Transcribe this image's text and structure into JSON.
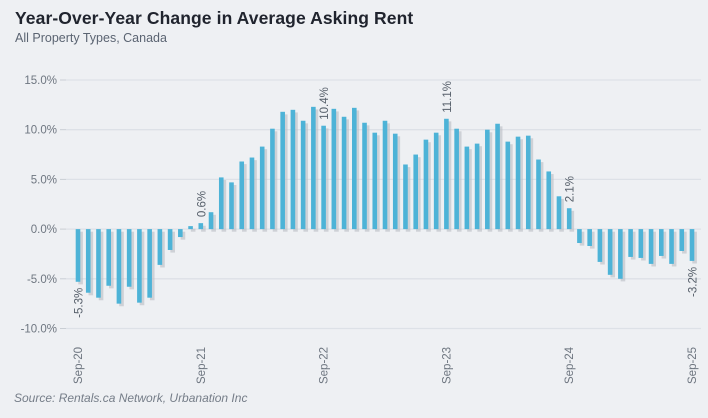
{
  "header": {
    "title": "Year-Over-Year Change in Average Asking Rent",
    "subtitle": "All Property Types, Canada"
  },
  "source": "Source: Rentals.ca Network, Urbanation Inc",
  "colors": {
    "background": "#eef0f3",
    "bar": "#4db3d7",
    "bar_shadow": "#b9bdc3",
    "gridline": "#dde1e7",
    "axis_tick": "#c9ced4",
    "axis_text": "#6e7680",
    "annotation_text": "#565f6a"
  },
  "chart_data": {
    "type": "bar",
    "title": "Year-Over-Year Change in Average Asking Rent",
    "subtitle": "All Property Types, Canada",
    "xlabel": "",
    "ylabel": "",
    "ylim": [
      -10,
      15
    ],
    "grid": true,
    "legend": "none",
    "y_ticks": [
      {
        "label": "15.0%",
        "value": 15
      },
      {
        "label": "10.0%",
        "value": 10
      },
      {
        "label": "5.0%",
        "value": 5
      },
      {
        "label": "0.0%",
        "value": 0
      },
      {
        "label": "-5.0%",
        "value": -5
      },
      {
        "label": "-10.0%",
        "value": -10
      }
    ],
    "x_tick_months": [
      "Sep-20",
      "Sep-21",
      "Sep-22",
      "Sep-23",
      "Sep-24",
      "Sep-25"
    ],
    "categories": [
      "Sep-20",
      "Oct-20",
      "Nov-20",
      "Dec-20",
      "Jan-21",
      "Feb-21",
      "Mar-21",
      "Apr-21",
      "May-21",
      "Jun-21",
      "Jul-21",
      "Aug-21",
      "Sep-21",
      "Oct-21",
      "Nov-21",
      "Dec-21",
      "Jan-22",
      "Feb-22",
      "Mar-22",
      "Apr-22",
      "May-22",
      "Jun-22",
      "Jul-22",
      "Aug-22",
      "Sep-22",
      "Oct-22",
      "Nov-22",
      "Dec-22",
      "Jan-23",
      "Feb-23",
      "Mar-23",
      "Apr-23",
      "May-23",
      "Jun-23",
      "Jul-23",
      "Aug-23",
      "Sep-23",
      "Oct-23",
      "Nov-23",
      "Dec-23",
      "Jan-24",
      "Feb-24",
      "Mar-24",
      "Apr-24",
      "May-24",
      "Jun-24",
      "Jul-24",
      "Aug-24",
      "Sep-24",
      "Oct-24",
      "Nov-24",
      "Dec-24",
      "Jan-25",
      "Feb-25",
      "Mar-25",
      "Apr-25",
      "May-25",
      "Jun-25",
      "Jul-25",
      "Aug-25",
      "Sep-25"
    ],
    "values": [
      -5.3,
      -6.4,
      -6.9,
      -5.7,
      -7.5,
      -5.8,
      -7.4,
      -6.9,
      -3.6,
      -2.1,
      -0.8,
      0.3,
      0.6,
      1.7,
      5.2,
      4.7,
      6.8,
      7.2,
      8.3,
      10.1,
      11.8,
      12.0,
      10.9,
      12.3,
      10.4,
      12.1,
      11.3,
      12.2,
      10.7,
      9.7,
      10.9,
      9.6,
      6.5,
      7.5,
      9.0,
      9.7,
      11.1,
      10.1,
      8.3,
      8.6,
      10.0,
      10.6,
      8.8,
      9.3,
      9.4,
      7.0,
      5.8,
      3.3,
      2.1,
      -1.4,
      -1.7,
      -3.3,
      -4.6,
      -5.0,
      -2.8,
      -2.9,
      -3.5,
      -2.7,
      -3.5,
      -2.2,
      -3.2
    ],
    "annotations": [
      {
        "category": "Sep-20",
        "label": "-5.3%"
      },
      {
        "category": "Sep-21",
        "label": "0.6%"
      },
      {
        "category": "Sep-22",
        "label": "10.4%"
      },
      {
        "category": "Sep-23",
        "label": "11.1%"
      },
      {
        "category": "Sep-24",
        "label": "2.1%"
      },
      {
        "category": "Sep-25",
        "label": "-3.2%"
      }
    ]
  }
}
